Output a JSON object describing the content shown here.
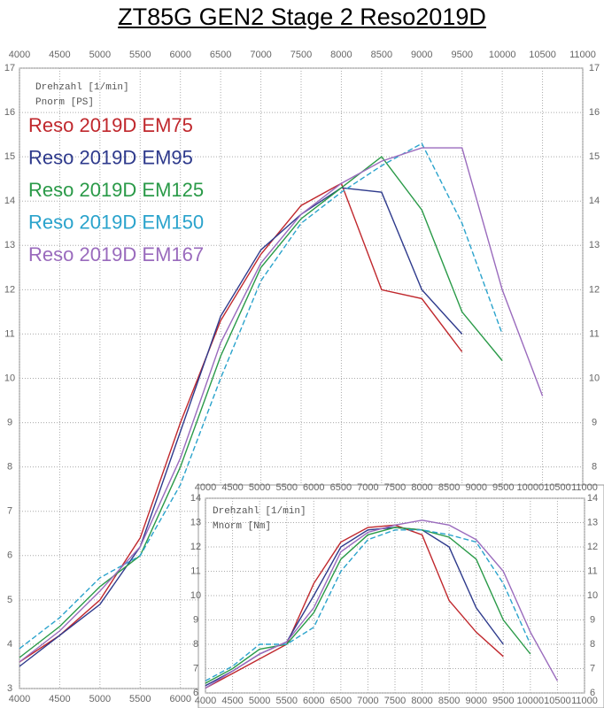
{
  "title": "ZT85G GEN2  Stage 2  Reso2019D",
  "chart_data": [
    {
      "type": "line",
      "x_label": "Drehzahl [1/min]",
      "y_label": "Pnorm [PS]",
      "x": [
        4000,
        4500,
        5000,
        5500,
        6000,
        6500,
        7000,
        7500,
        8000,
        8500,
        9000,
        9500,
        10000,
        10500
      ],
      "series": [
        {
          "name": "Reso 2019D EM75",
          "color": "#c0282d",
          "values": [
            3.6,
            4.2,
            5.0,
            6.4,
            9.0,
            11.3,
            12.8,
            13.9,
            14.4,
            12.0,
            11.8,
            10.6,
            null,
            null
          ]
        },
        {
          "name": "Reso 2019D EM95",
          "color": "#2e3a8c",
          "values": [
            3.5,
            4.2,
            4.9,
            6.2,
            8.8,
            11.4,
            12.9,
            13.7,
            14.3,
            14.2,
            12.0,
            11.0,
            null,
            null
          ]
        },
        {
          "name": "Reso 2019D EM125",
          "color": "#2a9a48",
          "values": [
            3.7,
            4.4,
            5.3,
            6.0,
            8.0,
            10.5,
            12.5,
            13.6,
            14.3,
            15.0,
            13.8,
            11.5,
            10.4,
            null
          ]
        },
        {
          "name": "Reso 2019D EM150",
          "color": "#2aa3cc",
          "dashed": true,
          "values": [
            3.9,
            4.6,
            5.5,
            6.0,
            7.6,
            10.0,
            12.2,
            13.5,
            14.2,
            14.8,
            15.3,
            13.5,
            11.0,
            null
          ]
        },
        {
          "name": "Reso 2019D EM167",
          "color": "#9a6bbd",
          "values": [
            3.6,
            4.3,
            5.2,
            6.2,
            8.2,
            10.8,
            12.6,
            13.7,
            14.4,
            14.9,
            15.2,
            15.2,
            12.0,
            9.6
          ]
        }
      ],
      "xlim": [
        4000,
        11000
      ],
      "xticks": [
        4000,
        4500,
        5000,
        5500,
        6000,
        6500,
        7000,
        7500,
        8000,
        8500,
        9000,
        9500,
        10000,
        10500,
        11000
      ],
      "ylim": [
        3,
        17
      ],
      "yticks": [
        3,
        4,
        5,
        6,
        7,
        8,
        9,
        10,
        11,
        12,
        13,
        14,
        15,
        16,
        17
      ],
      "grid": true,
      "legend": "upper left"
    },
    {
      "type": "line",
      "x_label": "Drehzahl [1/min]",
      "y_label": "Mnorm [Nm]",
      "x": [
        4000,
        4500,
        5000,
        5500,
        6000,
        6500,
        7000,
        7500,
        8000,
        8500,
        9000,
        9500,
        10000,
        10500
      ],
      "series": [
        {
          "color": "#c0282d",
          "values": [
            6.2,
            6.8,
            7.4,
            8.0,
            10.5,
            12.2,
            12.8,
            12.9,
            12.5,
            9.8,
            8.5,
            7.5,
            null,
            null
          ]
        },
        {
          "color": "#2e3a8c",
          "values": [
            6.3,
            6.9,
            7.6,
            8.1,
            10.0,
            12.0,
            12.7,
            12.8,
            12.7,
            12.0,
            9.5,
            8.0,
            null,
            null
          ]
        },
        {
          "color": "#2a9a48",
          "values": [
            6.4,
            7.0,
            7.8,
            8.0,
            9.3,
            11.5,
            12.5,
            12.8,
            12.7,
            12.4,
            11.5,
            9.0,
            7.6,
            null
          ]
        },
        {
          "color": "#2aa3cc",
          "dashed": true,
          "values": [
            6.5,
            7.1,
            8.0,
            8.0,
            8.7,
            11.0,
            12.3,
            12.7,
            12.7,
            12.5,
            12.2,
            10.5,
            8.0,
            null
          ]
        },
        {
          "color": "#9a6bbd",
          "values": [
            6.2,
            6.9,
            7.6,
            8.1,
            9.5,
            11.8,
            12.6,
            12.9,
            13.1,
            12.9,
            12.3,
            11.0,
            8.5,
            6.5
          ]
        }
      ],
      "xlim": [
        4000,
        11000
      ],
      "xticks": [
        4000,
        4500,
        5000,
        5500,
        6000,
        6500,
        7000,
        7500,
        8000,
        8500,
        9000,
        9500,
        10000,
        10500,
        11000
      ],
      "ylim": [
        6,
        14
      ],
      "yticks": [
        6,
        7,
        8,
        9,
        10,
        11,
        12,
        13,
        14
      ],
      "grid": true
    }
  ]
}
